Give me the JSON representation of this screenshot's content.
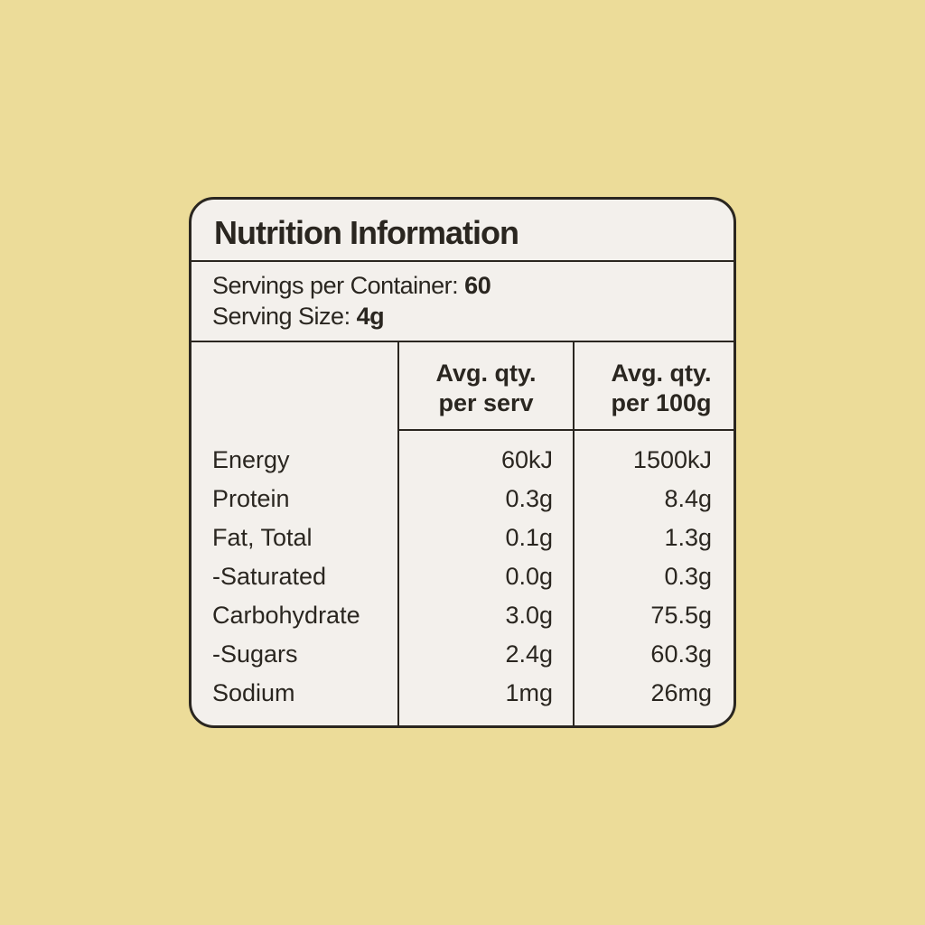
{
  "header": {
    "title": "Nutrition Information"
  },
  "servings": [
    {
      "label": "Servings per Container:",
      "value": "60"
    },
    {
      "label": "Serving Size:",
      "value": "4g"
    }
  ],
  "table": {
    "columns": [
      {
        "lines": [
          "Avg. qty.",
          "per serv"
        ]
      },
      {
        "lines": [
          "Avg. qty.",
          "per 100g"
        ]
      }
    ],
    "rows": [
      [
        "Energy",
        "60kJ",
        "1500kJ"
      ],
      [
        "Protein",
        "0.3g",
        "8.4g"
      ],
      [
        "Fat, Total",
        "0.1g",
        "1.3g"
      ],
      [
        "-Saturated",
        "0.0g",
        "0.3g"
      ],
      [
        "Carbohydrate",
        "3.0g",
        "75.5g"
      ],
      [
        "-Sugars",
        "2.4g",
        "60.3g"
      ],
      [
        "Sodium",
        "1mg",
        "26mg"
      ]
    ]
  }
}
